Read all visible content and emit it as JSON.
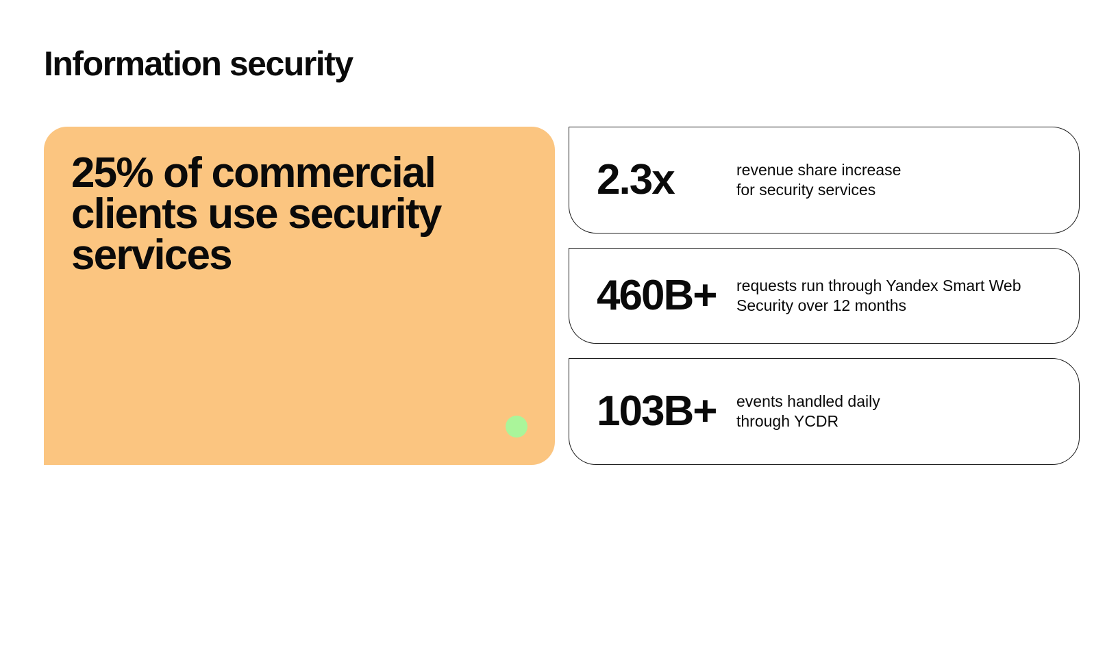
{
  "page": {
    "title": "Information security"
  },
  "highlight": {
    "text": "25% of commercial clients use security services"
  },
  "stats": [
    {
      "value": "2.3x",
      "description": "revenue share increase\nfor security services"
    },
    {
      "value": "460B+",
      "description": "requests run through Yandex Smart Web\nSecurity over 12 months"
    },
    {
      "value": "103B+",
      "description": "events handled daily\nthrough YCDR"
    }
  ],
  "colors": {
    "highlight_background": "#fbc580",
    "accent_dot": "#aaf59a",
    "card_border": "#1a1a1a",
    "text": "#0a0a0a"
  }
}
